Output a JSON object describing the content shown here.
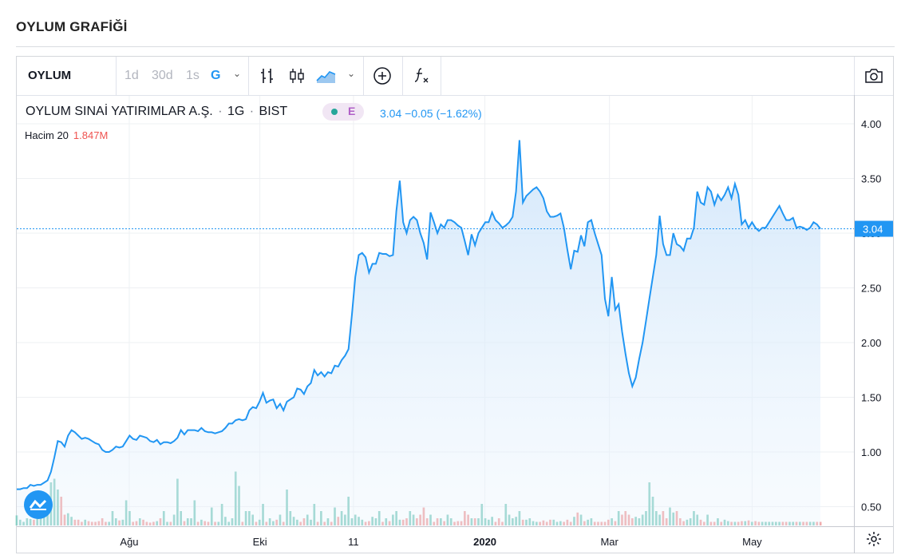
{
  "page": {
    "title": "OYLUM GRAFİĞİ"
  },
  "toolbar": {
    "symbol": "OYLUM",
    "intervals": [
      "1d",
      "30d",
      "1s",
      "G"
    ],
    "active_interval": "G"
  },
  "legend": {
    "name": "OYLUM SINAİ YATIRIMLAR A.Ş.",
    "sep1": "·",
    "interval": "1G",
    "sep2": "·",
    "exchange": "BIST",
    "badge": "E",
    "last": "3.04",
    "change": "−0.05",
    "change_pct": "(−1.62%)",
    "volume_label": "Hacim 20",
    "volume_value": "1.847M"
  },
  "colors": {
    "line": "#2196f3",
    "area": "#cfe5fa",
    "vol_up": "#7fcbbf",
    "vol_down": "#f0a0a0",
    "price_label_bg": "#2196f3"
  },
  "chart_data": {
    "type": "area",
    "ylim": [
      0.3,
      4.25
    ],
    "y_ticks": [
      "4.00",
      "3.50",
      "3.00",
      "2.50",
      "2.00",
      "1.50",
      "1.00",
      "0.50"
    ],
    "x_ticks": [
      "Ağu",
      "Eki",
      "11",
      "2020",
      "Mar",
      "May"
    ],
    "last_price_label": "3.04",
    "grid": true,
    "close": [
      0.66,
      0.66,
      0.67,
      0.67,
      0.7,
      0.69,
      0.7,
      0.7,
      0.72,
      0.74,
      0.82,
      0.95,
      1.1,
      1.09,
      1.05,
      1.15,
      1.2,
      1.18,
      1.15,
      1.12,
      1.13,
      1.12,
      1.1,
      1.08,
      1.07,
      1.02,
      1.0,
      1.0,
      1.02,
      1.05,
      1.04,
      1.05,
      1.1,
      1.15,
      1.12,
      1.11,
      1.15,
      1.14,
      1.13,
      1.1,
      1.09,
      1.11,
      1.07,
      1.09,
      1.09,
      1.08,
      1.1,
      1.13,
      1.2,
      1.16,
      1.2,
      1.2,
      1.2,
      1.19,
      1.22,
      1.19,
      1.18,
      1.18,
      1.17,
      1.18,
      1.19,
      1.22,
      1.26,
      1.26,
      1.29,
      1.3,
      1.29,
      1.3,
      1.38,
      1.41,
      1.4,
      1.46,
      1.54,
      1.45,
      1.47,
      1.48,
      1.4,
      1.44,
      1.38,
      1.46,
      1.48,
      1.5,
      1.58,
      1.57,
      1.53,
      1.6,
      1.63,
      1.75,
      1.7,
      1.73,
      1.69,
      1.73,
      1.72,
      1.79,
      1.78,
      1.84,
      1.88,
      1.94,
      2.25,
      2.6,
      2.8,
      2.82,
      2.78,
      2.64,
      2.72,
      2.72,
      2.82,
      2.81,
      2.81,
      2.79,
      2.8,
      3.2,
      3.48,
      3.1,
      3.0,
      3.12,
      3.15,
      3.12,
      3.0,
      2.91,
      2.76,
      3.19,
      3.1,
      3.0,
      3.08,
      3.05,
      3.12,
      3.12,
      3.1,
      3.07,
      3.05,
      2.93,
      2.8,
      2.99,
      2.89,
      3.0,
      3.05,
      3.1,
      3.1,
      3.19,
      3.12,
      3.09,
      3.05,
      3.07,
      3.1,
      3.15,
      3.38,
      3.85,
      3.28,
      3.34,
      3.37,
      3.4,
      3.42,
      3.38,
      3.32,
      3.2,
      3.15,
      3.15,
      3.16,
      3.18,
      3.05,
      2.85,
      2.67,
      2.84,
      2.83,
      2.98,
      2.88,
      3.1,
      3.12,
      3.0,
      2.9,
      2.8,
      2.4,
      2.24,
      2.6,
      2.3,
      2.35,
      2.1,
      1.9,
      1.72,
      1.6,
      1.68,
      1.85,
      2.0,
      2.2,
      2.4,
      2.6,
      2.8,
      3.16,
      2.9,
      2.8,
      2.8,
      3.0,
      2.9,
      2.88,
      2.84,
      2.95,
      2.95,
      3.05,
      3.38,
      3.28,
      3.26,
      3.42,
      3.38,
      3.26,
      3.35,
      3.3,
      3.35,
      3.42,
      3.32,
      3.45,
      3.35,
      3.08,
      3.12,
      3.05,
      3.1,
      3.05,
      3.02,
      3.05,
      3.05,
      3.1,
      3.15,
      3.2,
      3.25,
      3.18,
      3.12,
      3.12,
      3.14,
      3.05,
      3.06,
      3.05,
      3.03,
      3.05,
      3.1,
      3.08,
      3.04
    ],
    "volume_up": [
      0.14,
      0.08,
      0.05,
      0.1,
      0.09,
      0.05,
      0.1,
      0.12,
      0.15,
      0.22,
      0.6,
      0.65,
      0.5,
      0.3,
      0.25,
      0.17,
      0.12,
      0.1,
      0.2,
      0.1,
      0.08,
      0.1,
      0.07,
      0.06,
      0.08,
      0.12,
      0.08,
      0.05,
      0.2,
      0.1,
      0.1,
      0.08,
      0.35,
      0.2,
      0.1,
      0.3,
      0.1,
      0.15,
      0.08,
      0.05,
      0.08,
      0.06,
      0.05,
      0.2,
      0.05,
      0.08,
      0.15,
      0.65,
      0.2,
      0.3,
      0.1,
      0.1,
      0.35,
      0.1,
      0.08,
      0.05,
      0.1,
      0.25,
      0.06,
      0.05,
      0.3,
      0.12,
      0.05,
      0.1,
      0.75,
      0.55,
      0.3,
      0.2,
      0.2,
      0.15,
      0.1,
      0.08,
      0.3,
      0.1,
      0.1,
      0.06,
      0.1,
      0.15,
      0.3,
      0.5,
      0.2,
      0.12,
      0.08,
      0.1,
      0.2,
      0.15,
      0.08,
      0.3,
      0.3,
      0.2,
      0.15,
      0.1,
      0.12,
      0.25,
      0.35,
      0.2,
      0.15,
      0.4,
      0.1,
      0.15,
      0.12,
      0.08,
      0.05,
      0.15,
      0.12,
      0.1,
      0.2,
      0.12,
      0.1,
      0.08,
      0.15,
      0.2,
      0.08,
      0.12,
      0.1,
      0.2,
      0.15,
      0.08,
      0.1,
      0.12,
      0.1,
      0.15,
      0.08,
      0.06,
      0.1,
      0.08,
      0.15,
      0.1,
      0.05,
      0.08,
      0.12,
      0.2,
      0.25,
      0.1,
      0.12,
      0.1,
      0.3,
      0.1,
      0.08,
      0.12,
      0.35,
      0.5,
      0.6,
      0.3,
      0.15,
      0.1,
      0.12,
      0.2,
      0.05,
      0.08,
      0.1,
      0.06,
      0.05,
      0.08,
      0.12,
      0.1,
      0.15,
      0.08,
      0.05,
      0.06,
      0.1,
      0.15,
      0.2,
      0.12,
      0.3,
      0.15,
      0.1,
      0.08,
      0.1,
      0.25,
      0.15,
      0.12,
      0.12,
      0.2,
      0.1,
      0.15,
      0.2,
      0.25,
      0.3,
      0.15,
      0.2,
      0.12,
      0.1,
      0.15,
      0.2,
      0.6,
      0.4,
      0.2,
      0.15,
      0.1,
      0.12,
      0.25,
      0.18,
      0.3,
      0.15,
      0.1,
      0.08,
      0.1,
      0.2,
      0.15,
      0.12,
      0.3,
      0.15,
      0.12,
      0.1,
      0.1,
      0.12,
      0.08,
      0.06,
      0.1,
      0.05,
      0.08,
      0.1,
      0.06,
      0.15
    ],
    "volume_down": [
      0.08,
      0.05,
      0.06,
      0.07,
      0.05,
      0.08,
      0.06,
      0.06,
      0.1,
      0.1,
      0.55,
      0.2,
      0.7,
      0.4,
      0.15,
      0.12,
      0.1,
      0.08,
      0.08,
      0.05,
      0.1,
      0.06,
      0.05,
      0.05,
      0.06,
      0.1,
      0.05,
      0.06,
      0.08,
      0.05,
      0.07,
      0.06,
      0.1,
      0.08,
      0.05,
      0.06,
      0.05,
      0.08,
      0.05,
      0.04,
      0.05,
      0.06,
      0.1,
      0.05,
      0.06,
      0.05,
      0.08,
      0.07,
      0.1,
      0.06,
      0.05,
      0.05,
      0.05,
      0.05,
      0.05,
      0.06,
      0.05,
      0.06,
      0.05,
      0.04,
      0.05,
      0.05,
      0.05,
      0.05,
      0.1,
      0.08,
      0.05,
      0.07,
      0.1,
      0.08,
      0.05,
      0.05,
      0.06,
      0.05,
      0.05,
      0.05,
      0.08,
      0.05,
      0.05,
      0.06,
      0.05,
      0.08,
      0.05,
      0.05,
      0.1,
      0.06,
      0.05,
      0.08,
      0.05,
      0.05,
      0.05,
      0.05,
      0.05,
      0.05,
      0.12,
      0.08,
      0.08,
      0.1,
      0.2,
      0.15,
      0.12,
      0.08,
      0.05,
      0.06,
      0.25,
      0.08,
      0.1,
      0.05,
      0.08,
      0.06,
      0.15,
      0.05,
      0.06,
      0.08,
      0.1,
      0.05,
      0.06,
      0.1,
      0.15,
      0.25,
      0.1,
      0.08,
      0.05,
      0.1,
      0.08,
      0.06,
      0.05,
      0.1,
      0.05,
      0.06,
      0.06,
      0.2,
      0.15,
      0.15,
      0.1,
      0.08,
      0.2,
      0.05,
      0.06,
      0.05,
      0.05,
      0.1,
      0.05,
      0.06,
      0.1,
      0.08,
      0.05,
      0.06,
      0.08,
      0.05,
      0.05,
      0.05,
      0.06,
      0.05,
      0.07,
      0.05,
      0.08,
      0.06,
      0.05,
      0.05,
      0.05,
      0.08,
      0.05,
      0.1,
      0.18,
      0.05,
      0.06,
      0.06,
      0.05,
      0.05,
      0.05,
      0.05,
      0.05,
      0.08,
      0.05,
      0.06,
      0.1,
      0.15,
      0.2,
      0.15,
      0.1,
      0.08,
      0.05,
      0.05,
      0.1,
      0.25,
      0.15,
      0.1,
      0.15,
      0.2,
      0.1,
      0.12,
      0.08,
      0.2,
      0.1,
      0.06,
      0.08,
      0.05,
      0.05,
      0.06,
      0.08,
      0.05,
      0.05,
      0.05,
      0.05,
      0.06,
      0.05,
      0.05,
      0.05,
      0.05,
      0.06,
      0.05,
      0.06,
      0.05,
      0.07,
      0.05,
      0.06,
      0.05,
      0.04,
      0.05,
      0.06
    ]
  }
}
